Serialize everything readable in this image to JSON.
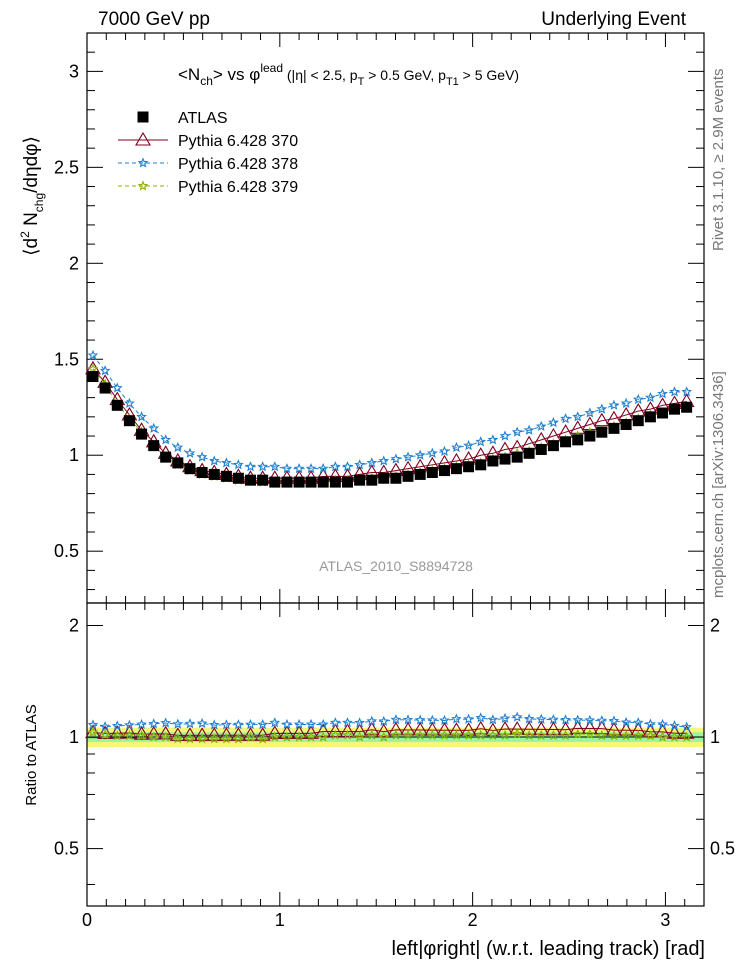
{
  "header": {
    "left": "7000 GeV pp",
    "right": "Underlying Event"
  },
  "side_label": {
    "top": "Rivet 3.1.10, ≥ 2.9M events",
    "bottom": "mcplots.cern.ch [arXiv:1306.3436]"
  },
  "chart_data": {
    "type": "scatter",
    "title": {
      "base": "<N",
      "sub1": "ch",
      "mid": "> vs φ",
      "sup": "lead",
      "cut": " (|η| < 2.5, p",
      "sub2": "T",
      "cut2": " > 0.5 GeV, p",
      "sub3": "T1",
      "cut3": " > 5 GeV)"
    },
    "ylabel_top": {
      "a": "⟨d",
      "sup": "2",
      "b": " N",
      "sub": "chg",
      "c": "/dηdφ⟩"
    },
    "ylabel_bottom": "Ratio to ATLAS",
    "xlabel": "left|φright| (w.r.t. leading track) [rad]",
    "watermark": "ATLAS_2010_S8894728",
    "xlim": [
      0,
      3.2
    ],
    "ylim_top": [
      0.23,
      3.2
    ],
    "ylim_bottom": [
      0.35,
      2.3
    ],
    "xticks": [
      0,
      1,
      2,
      3
    ],
    "xtick_labels": [
      "0",
      "1",
      "2",
      "3"
    ],
    "yticks_top": [
      0.5,
      1,
      1.5,
      2,
      2.5,
      3
    ],
    "yticks_top_labels": [
      "0.5",
      "1",
      "1.5",
      "2",
      "2.5",
      "3"
    ],
    "yticks_bottom": [
      0.5,
      1,
      2
    ],
    "yticks_bottom_labels": [
      "0.5",
      "1",
      "2"
    ],
    "legend_position": "top-left",
    "x": [
      0.031,
      0.094,
      0.157,
      0.22,
      0.283,
      0.346,
      0.408,
      0.471,
      0.534,
      0.597,
      0.66,
      0.723,
      0.785,
      0.848,
      0.911,
      0.974,
      1.037,
      1.1,
      1.162,
      1.225,
      1.288,
      1.351,
      1.414,
      1.477,
      1.539,
      1.602,
      1.665,
      1.728,
      1.791,
      1.854,
      1.916,
      1.979,
      2.042,
      2.105,
      2.168,
      2.231,
      2.293,
      2.356,
      2.419,
      2.482,
      2.545,
      2.608,
      2.67,
      2.733,
      2.796,
      2.859,
      2.922,
      2.985,
      3.047,
      3.11
    ],
    "series": [
      {
        "name": "ATLAS",
        "color": "#000000",
        "marker": "square",
        "values": [
          1.41,
          1.35,
          1.26,
          1.18,
          1.11,
          1.05,
          0.99,
          0.96,
          0.93,
          0.91,
          0.9,
          0.89,
          0.88,
          0.87,
          0.87,
          0.86,
          0.86,
          0.86,
          0.86,
          0.86,
          0.86,
          0.86,
          0.87,
          0.87,
          0.88,
          0.88,
          0.89,
          0.9,
          0.91,
          0.92,
          0.93,
          0.94,
          0.95,
          0.97,
          0.98,
          0.99,
          1.01,
          1.03,
          1.05,
          1.07,
          1.08,
          1.1,
          1.12,
          1.14,
          1.16,
          1.18,
          1.2,
          1.22,
          1.24,
          1.25
        ]
      },
      {
        "name": "Pythia 6.428 370",
        "color": "#800020",
        "marker": "triangle",
        "line": "solid",
        "values": [
          1.45,
          1.38,
          1.29,
          1.21,
          1.13,
          1.07,
          1.01,
          0.97,
          0.94,
          0.92,
          0.91,
          0.9,
          0.89,
          0.88,
          0.88,
          0.88,
          0.88,
          0.88,
          0.88,
          0.89,
          0.89,
          0.89,
          0.9,
          0.91,
          0.91,
          0.92,
          0.93,
          0.94,
          0.95,
          0.96,
          0.97,
          0.98,
          1.0,
          1.01,
          1.03,
          1.04,
          1.06,
          1.08,
          1.1,
          1.12,
          1.14,
          1.16,
          1.18,
          1.19,
          1.21,
          1.23,
          1.24,
          1.26,
          1.27,
          1.28
        ]
      },
      {
        "name": "Pythia 6.428 378",
        "color": "#1f7fd0",
        "marker": "star",
        "line": "dashed",
        "values": [
          1.52,
          1.44,
          1.35,
          1.27,
          1.2,
          1.14,
          1.08,
          1.04,
          1.01,
          0.99,
          0.97,
          0.96,
          0.95,
          0.94,
          0.94,
          0.94,
          0.93,
          0.93,
          0.93,
          0.93,
          0.94,
          0.94,
          0.95,
          0.96,
          0.97,
          0.98,
          0.99,
          1.0,
          1.01,
          1.02,
          1.04,
          1.05,
          1.07,
          1.08,
          1.1,
          1.12,
          1.13,
          1.15,
          1.17,
          1.19,
          1.2,
          1.22,
          1.24,
          1.26,
          1.27,
          1.29,
          1.3,
          1.32,
          1.33,
          1.33
        ]
      },
      {
        "name": "Pythia 6.428 379",
        "color": "#8ab000",
        "marker": "star",
        "line": "dashed",
        "values": [
          1.45,
          1.37,
          1.27,
          1.19,
          1.12,
          1.05,
          0.99,
          0.95,
          0.92,
          0.9,
          0.89,
          0.88,
          0.87,
          0.87,
          0.86,
          0.86,
          0.86,
          0.86,
          0.86,
          0.86,
          0.87,
          0.87,
          0.87,
          0.88,
          0.88,
          0.89,
          0.9,
          0.91,
          0.92,
          0.93,
          0.94,
          0.95,
          0.96,
          0.98,
          0.99,
          1.01,
          1.02,
          1.04,
          1.06,
          1.08,
          1.1,
          1.12,
          1.13,
          1.15,
          1.17,
          1.19,
          1.21,
          1.22,
          1.24,
          1.25
        ]
      }
    ],
    "ratio_band": {
      "inner": [
        0.97,
        1.03
      ],
      "outer": [
        0.94,
        1.06
      ],
      "inner_color": "#9cf59c",
      "outer_color": "#f6f67a"
    }
  }
}
